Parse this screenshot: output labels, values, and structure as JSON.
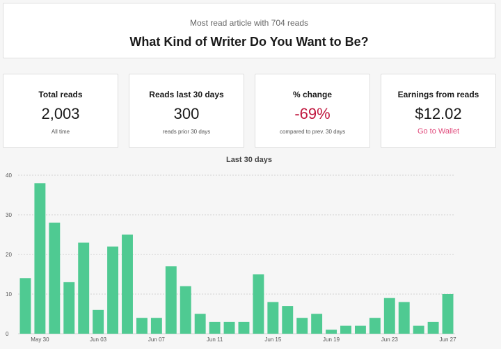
{
  "hero": {
    "subtitle": "Most read article with 704 reads",
    "title": "What Kind of Writer Do You Want to Be?"
  },
  "stats": {
    "total": {
      "label": "Total reads",
      "value": "2,003",
      "note": "All time"
    },
    "last30": {
      "label": "Reads last 30 days",
      "value": "300",
      "note": "reads prior 30 days"
    },
    "change": {
      "label": "% change",
      "value": "-69%",
      "note": "compared to prev. 30 days"
    },
    "earnings": {
      "label": "Earnings from reads",
      "value": "$12.02",
      "link": "Go to Wallet"
    }
  },
  "colors": {
    "bar": "#4fca92",
    "negative": "#c0183f",
    "link": "#e0487a"
  },
  "chart_data": {
    "type": "bar",
    "title": "Last 30 days",
    "xlabel": "",
    "ylabel": "",
    "ylim": [
      0,
      40
    ],
    "yticks": [
      0,
      10,
      20,
      30,
      40
    ],
    "grid": true,
    "categories": [
      "May 29",
      "May 30",
      "May 31",
      "Jun 01",
      "Jun 02",
      "Jun 03",
      "Jun 04",
      "Jun 05",
      "Jun 06",
      "Jun 07",
      "Jun 08",
      "Jun 09",
      "Jun 10",
      "Jun 11",
      "Jun 12",
      "Jun 13",
      "Jun 14",
      "Jun 15",
      "Jun 16",
      "Jun 17",
      "Jun 18",
      "Jun 19",
      "Jun 20",
      "Jun 21",
      "Jun 22",
      "Jun 23",
      "Jun 24",
      "Jun 25",
      "Jun 26",
      "Jun 27"
    ],
    "values": [
      14,
      38,
      28,
      13,
      23,
      6,
      22,
      25,
      4,
      4,
      17,
      12,
      5,
      3,
      3,
      3,
      15,
      8,
      7,
      4,
      5,
      1,
      2,
      2,
      4,
      9,
      8,
      2,
      3,
      10
    ],
    "tick_labels": [
      "May 30",
      "Jun 03",
      "Jun 07",
      "Jun 11",
      "Jun 15",
      "Jun 19",
      "Jun 23",
      "Jun 27"
    ]
  }
}
